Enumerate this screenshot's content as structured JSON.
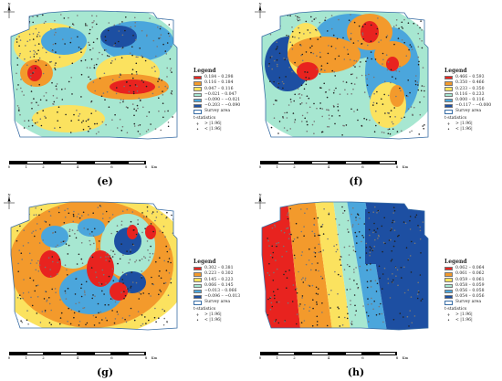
{
  "panels": [
    {
      "id": "e",
      "caption": "(e)",
      "legend_title": "Legend",
      "classes": [
        {
          "label": "0.184 – 0.298",
          "color": "#e8231f"
        },
        {
          "label": "0.116 – 0.184",
          "color": "#f39a2c"
        },
        {
          "label": "0.047 – 0.116",
          "color": "#fbe25f"
        },
        {
          "label": "−0.021 – 0.047",
          "color": "#a7e7d1"
        },
        {
          "label": "−0.090 – −0.021",
          "color": "#4ba6dc"
        },
        {
          "label": "−0.203 – −0.090",
          "color": "#1d4fa2"
        }
      ],
      "survey_area_label": "Survey area",
      "t_statistics_label": "t-statistics",
      "symbols": [
        {
          "glyph": "+",
          "label": "> |1.96|"
        },
        {
          "glyph": "•",
          "label": "< |1.96|"
        }
      ],
      "scale_ticks": [
        "0",
        "1",
        "2",
        "4",
        "6",
        "8"
      ],
      "scale_unit": "Km",
      "north_label": "N"
    },
    {
      "id": "f",
      "caption": "(f)",
      "legend_title": "Legend",
      "classes": [
        {
          "label": "0.466 – 0.593",
          "color": "#e8231f"
        },
        {
          "label": "0.350 – 0.466",
          "color": "#f39a2c"
        },
        {
          "label": "0.233 – 0.350",
          "color": "#fbe25f"
        },
        {
          "label": "0.116 – 0.233",
          "color": "#a7e7d1"
        },
        {
          "label": "0.000 – 0.116",
          "color": "#4ba6dc"
        },
        {
          "label": "−0.117 – −0.000",
          "color": "#1d4fa2"
        }
      ],
      "survey_area_label": "Survey area",
      "t_statistics_label": "t-statistics",
      "symbols": [
        {
          "glyph": "+",
          "label": "> |1.96|"
        },
        {
          "glyph": "•",
          "label": "< |1.96|"
        }
      ],
      "scale_ticks": [
        "0",
        "1",
        "2",
        "4",
        "6",
        "8"
      ],
      "scale_unit": "Km",
      "north_label": "N"
    },
    {
      "id": "g",
      "caption": "(g)",
      "legend_title": "Legend",
      "classes": [
        {
          "label": "0.302 – 0.381",
          "color": "#e8231f"
        },
        {
          "label": "0.223 – 0.302",
          "color": "#f39a2c"
        },
        {
          "label": "0.145 – 0.223",
          "color": "#fbe25f"
        },
        {
          "label": "0.066 – 0.145",
          "color": "#a7e7d1"
        },
        {
          "label": "−0.013 – 0.066",
          "color": "#4ba6dc"
        },
        {
          "label": "−0.096 – −0.013",
          "color": "#1d4fa2"
        }
      ],
      "survey_area_label": "Survey area",
      "t_statistics_label": "t-statistics",
      "symbols": [
        {
          "glyph": "+",
          "label": "> |1.96|"
        },
        {
          "glyph": "•",
          "label": "< |1.96|"
        }
      ],
      "scale_ticks": [
        "0",
        "1",
        "2",
        "4",
        "6",
        "8"
      ],
      "scale_unit": "Km",
      "north_label": "N"
    },
    {
      "id": "h",
      "caption": "(h)",
      "legend_title": "Legend",
      "classes": [
        {
          "label": "0.062 – 0.064",
          "color": "#e8231f"
        },
        {
          "label": "0.061 – 0.062",
          "color": "#f39a2c"
        },
        {
          "label": "0.059 – 0.061",
          "color": "#fbe25f"
        },
        {
          "label": "0.058 – 0.059",
          "color": "#a7e7d1"
        },
        {
          "label": "0.056 – 0.058",
          "color": "#4ba6dc"
        },
        {
          "label": "0.054 – 0.056",
          "color": "#1d4fa2"
        }
      ],
      "survey_area_label": "Survey area",
      "t_statistics_label": "t-statistics",
      "symbols": [
        {
          "glyph": "+",
          "label": "> |1.96|"
        },
        {
          "glyph": "•",
          "label": "< |1.96|"
        }
      ],
      "scale_ticks": [
        "0",
        "1",
        "2",
        "4",
        "6",
        "8"
      ],
      "scale_unit": "Km",
      "north_label": "N"
    }
  ]
}
